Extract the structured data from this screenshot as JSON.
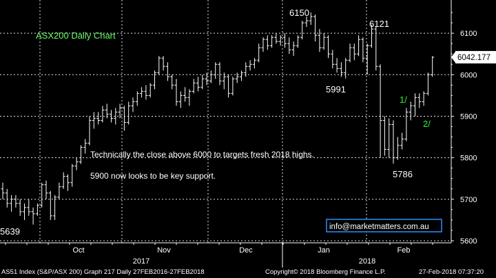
{
  "chart_data": {
    "type": "ohlc",
    "title": "ASX200 Daily Chart",
    "ylim": [
      5595,
      6180
    ],
    "yticks": [
      5600,
      5700,
      5800,
      5900,
      6000,
      6100
    ],
    "last_value": "6042.177",
    "month_labels": [
      "Oct",
      "Nov",
      "Dec",
      "Jan",
      "Feb"
    ],
    "year_labels": [
      "2017",
      "2018"
    ],
    "grid": true,
    "bars": [
      {
        "o": 5725,
        "h": 5740,
        "l": 5700,
        "c": 5715
      },
      {
        "o": 5715,
        "h": 5725,
        "l": 5680,
        "c": 5690
      },
      {
        "o": 5690,
        "h": 5710,
        "l": 5670,
        "c": 5700
      },
      {
        "o": 5700,
        "h": 5710,
        "l": 5680,
        "c": 5690
      },
      {
        "o": 5690,
        "h": 5700,
        "l": 5660,
        "c": 5670
      },
      {
        "o": 5670,
        "h": 5690,
        "l": 5650,
        "c": 5680
      },
      {
        "o": 5680,
        "h": 5700,
        "l": 5660,
        "c": 5670
      },
      {
        "o": 5670,
        "h": 5680,
        "l": 5639,
        "c": 5665
      },
      {
        "o": 5665,
        "h": 5690,
        "l": 5660,
        "c": 5685
      },
      {
        "o": 5685,
        "h": 5740,
        "l": 5680,
        "c": 5735
      },
      {
        "o": 5735,
        "h": 5745,
        "l": 5700,
        "c": 5715
      },
      {
        "o": 5715,
        "h": 5720,
        "l": 5650,
        "c": 5660
      },
      {
        "o": 5660,
        "h": 5710,
        "l": 5650,
        "c": 5705
      },
      {
        "o": 5705,
        "h": 5740,
        "l": 5700,
        "c": 5730
      },
      {
        "o": 5730,
        "h": 5765,
        "l": 5725,
        "c": 5755
      },
      {
        "o": 5755,
        "h": 5760,
        "l": 5720,
        "c": 5740
      },
      {
        "o": 5740,
        "h": 5785,
        "l": 5730,
        "c": 5780
      },
      {
        "o": 5780,
        "h": 5800,
        "l": 5770,
        "c": 5790
      },
      {
        "o": 5790,
        "h": 5830,
        "l": 5785,
        "c": 5825
      },
      {
        "o": 5825,
        "h": 5845,
        "l": 5810,
        "c": 5835
      },
      {
        "o": 5835,
        "h": 5900,
        "l": 5830,
        "c": 5890
      },
      {
        "o": 5890,
        "h": 5910,
        "l": 5870,
        "c": 5895
      },
      {
        "o": 5895,
        "h": 5910,
        "l": 5880,
        "c": 5890
      },
      {
        "o": 5890,
        "h": 5925,
        "l": 5885,
        "c": 5915
      },
      {
        "o": 5915,
        "h": 5930,
        "l": 5895,
        "c": 5905
      },
      {
        "o": 5905,
        "h": 5915,
        "l": 5885,
        "c": 5895
      },
      {
        "o": 5895,
        "h": 5920,
        "l": 5880,
        "c": 5910
      },
      {
        "o": 5910,
        "h": 5930,
        "l": 5895,
        "c": 5920
      },
      {
        "o": 5920,
        "h": 5925,
        "l": 5865,
        "c": 5885
      },
      {
        "o": 5885,
        "h": 5935,
        "l": 5880,
        "c": 5925
      },
      {
        "o": 5925,
        "h": 5945,
        "l": 5910,
        "c": 5935
      },
      {
        "o": 5935,
        "h": 5960,
        "l": 5925,
        "c": 5955
      },
      {
        "o": 5955,
        "h": 5970,
        "l": 5945,
        "c": 5960
      },
      {
        "o": 5960,
        "h": 5975,
        "l": 5940,
        "c": 5950
      },
      {
        "o": 5950,
        "h": 5980,
        "l": 5945,
        "c": 5975
      },
      {
        "o": 5975,
        "h": 6010,
        "l": 5965,
        "c": 6005
      },
      {
        "o": 6005,
        "h": 6045,
        "l": 6000,
        "c": 6040
      },
      {
        "o": 6040,
        "h": 6045,
        "l": 6010,
        "c": 6020
      },
      {
        "o": 6020,
        "h": 6030,
        "l": 5985,
        "c": 5995
      },
      {
        "o": 5995,
        "h": 6000,
        "l": 5965,
        "c": 5975
      },
      {
        "o": 5975,
        "h": 5990,
        "l": 5925,
        "c": 5935
      },
      {
        "o": 5935,
        "h": 5960,
        "l": 5920,
        "c": 5950
      },
      {
        "o": 5950,
        "h": 5970,
        "l": 5935,
        "c": 5945
      },
      {
        "o": 5945,
        "h": 5965,
        "l": 5925,
        "c": 5960
      },
      {
        "o": 5960,
        "h": 5990,
        "l": 5955,
        "c": 5980
      },
      {
        "o": 5980,
        "h": 5995,
        "l": 5960,
        "c": 5970
      },
      {
        "o": 5970,
        "h": 6000,
        "l": 5965,
        "c": 5990
      },
      {
        "o": 5990,
        "h": 6005,
        "l": 5975,
        "c": 5985
      },
      {
        "o": 5985,
        "h": 6010,
        "l": 5980,
        "c": 6000
      },
      {
        "o": 6000,
        "h": 6030,
        "l": 5990,
        "c": 6025
      },
      {
        "o": 6025,
        "h": 6030,
        "l": 5975,
        "c": 5985
      },
      {
        "o": 5985,
        "h": 6005,
        "l": 5965,
        "c": 5995
      },
      {
        "o": 5995,
        "h": 6000,
        "l": 5945,
        "c": 5955
      },
      {
        "o": 5955,
        "h": 5995,
        "l": 5950,
        "c": 5990
      },
      {
        "o": 5990,
        "h": 6005,
        "l": 5980,
        "c": 5995
      },
      {
        "o": 5995,
        "h": 6010,
        "l": 5985,
        "c": 6005
      },
      {
        "o": 6005,
        "h": 6030,
        "l": 5995,
        "c": 6020
      },
      {
        "o": 6020,
        "h": 6035,
        "l": 6010,
        "c": 6025
      },
      {
        "o": 6025,
        "h": 6040,
        "l": 6015,
        "c": 6035
      },
      {
        "o": 6035,
        "h": 6075,
        "l": 6030,
        "c": 6065
      },
      {
        "o": 6065,
        "h": 6090,
        "l": 6055,
        "c": 6085
      },
      {
        "o": 6085,
        "h": 6095,
        "l": 6060,
        "c": 6070
      },
      {
        "o": 6070,
        "h": 6095,
        "l": 6065,
        "c": 6090
      },
      {
        "o": 6090,
        "h": 6100,
        "l": 6075,
        "c": 6080
      },
      {
        "o": 6080,
        "h": 6095,
        "l": 6070,
        "c": 6090
      },
      {
        "o": 6090,
        "h": 6100,
        "l": 6065,
        "c": 6075
      },
      {
        "o": 6075,
        "h": 6090,
        "l": 6050,
        "c": 6060
      },
      {
        "o": 6060,
        "h": 6080,
        "l": 6045,
        "c": 6070
      },
      {
        "o": 6070,
        "h": 6095,
        "l": 6065,
        "c": 6090
      },
      {
        "o": 6090,
        "h": 6130,
        "l": 6085,
        "c": 6125
      },
      {
        "o": 6125,
        "h": 6140,
        "l": 6115,
        "c": 6130
      },
      {
        "o": 6130,
        "h": 6150,
        "l": 6120,
        "c": 6140
      },
      {
        "o": 6140,
        "h": 6145,
        "l": 6080,
        "c": 6095
      },
      {
        "o": 6095,
        "h": 6110,
        "l": 6055,
        "c": 6065
      },
      {
        "o": 6065,
        "h": 6100,
        "l": 6060,
        "c": 6090
      },
      {
        "o": 6090,
        "h": 6095,
        "l": 6040,
        "c": 6050
      },
      {
        "o": 6050,
        "h": 6060,
        "l": 6015,
        "c": 6025
      },
      {
        "o": 6025,
        "h": 6040,
        "l": 6005,
        "c": 6015
      },
      {
        "o": 6015,
        "h": 6030,
        "l": 5995,
        "c": 6005
      },
      {
        "o": 6005,
        "h": 6040,
        "l": 5991,
        "c": 6035
      },
      {
        "o": 6035,
        "h": 6075,
        "l": 6030,
        "c": 6065
      },
      {
        "o": 6065,
        "h": 6075,
        "l": 6035,
        "c": 6050
      },
      {
        "o": 6050,
        "h": 6095,
        "l": 6045,
        "c": 6085
      },
      {
        "o": 6085,
        "h": 6090,
        "l": 6030,
        "c": 6040
      },
      {
        "o": 6040,
        "h": 6075,
        "l": 6000,
        "c": 6070
      },
      {
        "o": 6070,
        "h": 6121,
        "l": 6065,
        "c": 6110
      },
      {
        "o": 6110,
        "h": 6115,
        "l": 6010,
        "c": 6020
      },
      {
        "o": 6020,
        "h": 6025,
        "l": 5800,
        "c": 5890
      },
      {
        "o": 5890,
        "h": 5900,
        "l": 5805,
        "c": 5820
      },
      {
        "o": 5820,
        "h": 5895,
        "l": 5800,
        "c": 5880
      },
      {
        "o": 5880,
        "h": 5890,
        "l": 5786,
        "c": 5800
      },
      {
        "o": 5800,
        "h": 5850,
        "l": 5795,
        "c": 5830
      },
      {
        "o": 5830,
        "h": 5860,
        "l": 5820,
        "c": 5845
      },
      {
        "o": 5845,
        "h": 5920,
        "l": 5840,
        "c": 5910
      },
      {
        "o": 5910,
        "h": 5935,
        "l": 5890,
        "c": 5925
      },
      {
        "o": 5925,
        "h": 5955,
        "l": 5900,
        "c": 5945
      },
      {
        "o": 5945,
        "h": 5955,
        "l": 5920,
        "c": 5935
      },
      {
        "o": 5935,
        "h": 5960,
        "l": 5925,
        "c": 5955
      },
      {
        "o": 5955,
        "h": 6005,
        "l": 5950,
        "c": 6000
      },
      {
        "o": 6000,
        "h": 6045,
        "l": 5995,
        "c": 6042
      }
    ],
    "annotations": [
      {
        "text": "ASX200 Daily Chart",
        "color": "#66ff66"
      },
      {
        "text": "6150",
        "color": "#ffffff"
      },
      {
        "text": "6121",
        "color": "#ffffff"
      },
      {
        "text": "5991",
        "color": "#ffffff"
      },
      {
        "text": "5786",
        "color": "#ffffff"
      },
      {
        "text": "5639",
        "color": "#ffffff"
      },
      {
        "text": "1/",
        "color": "#33ee33"
      },
      {
        "text": "2/",
        "color": "#33ee33"
      },
      {
        "text": "Technically the close above 6000 to targets fresh 2018 highs.",
        "color": "#ffffff"
      },
      {
        "text": "5900 now looks to be key support.",
        "color": "#ffffff"
      }
    ],
    "watermark": "info@marketmatters.com.au",
    "colors": {
      "background": "#000000",
      "bars": "#ffffff",
      "grid": "#ffffff",
      "title": "#66ff66",
      "wave": "#33ee33",
      "watermark_border": "#2a8fff"
    }
  },
  "footer": {
    "left": "AS51 Index (S&P/ASX 200) Graph 217  Daily 27FEB2016-27FEB2018",
    "middle": "Copyright© 2018 Bloomberg Finance L.P.",
    "right": "27-Feb-2018 07:37:20"
  }
}
